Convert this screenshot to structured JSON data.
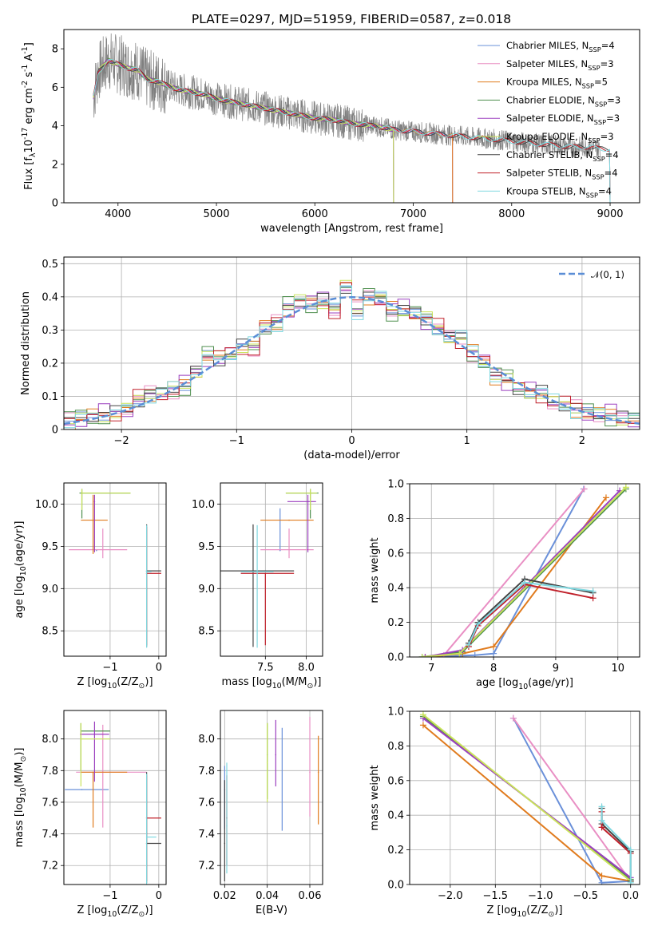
{
  "figure": {
    "title": "PLATE=0297, MJD=51959, FIBERID=0587, z=0.018"
  },
  "models": [
    {
      "label": "Chabrier MILES, N$_{SSP}$=4",
      "imf": "Chabrier",
      "lib": "MILES",
      "nssp": "4",
      "color": "#6a90d9"
    },
    {
      "label": "Salpeter MILES, N$_{SSP}$=3",
      "imf": "Salpeter",
      "lib": "MILES",
      "nssp": "3",
      "color": "#e98fc4"
    },
    {
      "label": "Kroupa MILES, N$_{SSP}$=5",
      "imf": "Kroupa",
      "lib": "MILES",
      "nssp": "5",
      "color": "#e07b1e"
    },
    {
      "label": "Chabrier ELODIE, N$_{SSP}$=3",
      "imf": "Chabrier",
      "lib": "ELODIE",
      "nssp": "3",
      "color": "#4f8f4f"
    },
    {
      "label": "Salpeter ELODIE, N$_{SSP}$=3",
      "imf": "Salpeter",
      "lib": "ELODIE",
      "nssp": "3",
      "color": "#9b3fbf"
    },
    {
      "label": "Kroupa ELODIE, N$_{SSP}$=3",
      "imf": "Kroupa",
      "lib": "ELODIE",
      "nssp": "3",
      "color": "#c9e35a"
    },
    {
      "label": "Chabrier STELIB, N$_{SSP}$=4",
      "imf": "Chabrier",
      "lib": "STELIB",
      "nssp": "4",
      "color": "#444444"
    },
    {
      "label": "Salpeter STELIB, N$_{SSP}$=4",
      "imf": "Salpeter",
      "lib": "STELIB",
      "nssp": "4",
      "color": "#c0202a"
    },
    {
      "label": "Kroupa STELIB, N$_{SSP}$=4",
      "imf": "Kroupa",
      "lib": "STELIB",
      "nssp": "4",
      "color": "#7fd8e0"
    }
  ],
  "chart_data": [
    {
      "id": "spectrum",
      "type": "line",
      "title": "PLATE=0297, MJD=51959, FIBERID=0587, z=0.018",
      "xlabel": "wavelength [Angstrom, rest frame]",
      "ylabel": "Flux [f$_\\lambda$10$^{-17}$ erg cm$^{-2}$ s$^{-1}$ A$^{-1}$]",
      "xlim": [
        3450,
        9300
      ],
      "ylim": [
        0,
        9
      ],
      "xticks": [
        4000,
        5000,
        6000,
        7000,
        8000,
        9000
      ],
      "yticks": [
        0,
        2,
        4,
        6,
        8
      ],
      "grid": false,
      "legend": "top-right",
      "data_series": {
        "name": "data",
        "color": "#808080",
        "x": [
          3750,
          3800,
          3900,
          4000,
          4100,
          4200,
          4300,
          4400,
          4500,
          4600,
          4700,
          4800,
          4900,
          5000,
          5100,
          5200,
          5300,
          5400,
          5500,
          5600,
          5700,
          5800,
          5900,
          6000,
          6200,
          6400,
          6600,
          6800,
          7000,
          7200,
          7400,
          7600,
          7800,
          8000,
          8200,
          8400,
          8600,
          8800,
          8900
        ],
        "y": [
          5.5,
          6.8,
          7.4,
          7.2,
          7.0,
          6.9,
          6.4,
          6.3,
          6.1,
          5.9,
          5.8,
          5.7,
          5.6,
          5.4,
          5.3,
          5.2,
          5.1,
          5.0,
          4.9,
          4.8,
          4.7,
          4.6,
          4.5,
          4.4,
          4.3,
          4.1,
          4.0,
          3.8,
          3.7,
          3.6,
          3.5,
          3.4,
          3.3,
          3.2,
          3.1,
          3.0,
          2.9,
          2.9,
          2.8
        ]
      },
      "model_end_x": [
        7400,
        7400,
        7400,
        6800,
        6800,
        6800,
        9000,
        9000,
        9000
      ]
    },
    {
      "id": "residual-hist",
      "type": "line",
      "xlabel": "(data-model)/error",
      "ylabel": "Normed distribution",
      "xlim": [
        -2.5,
        2.5
      ],
      "ylim": [
        0,
        0.52
      ],
      "xticks": [
        -2,
        -1,
        0,
        1,
        2
      ],
      "yticks": [
        0,
        0.1,
        0.2,
        0.3,
        0.4,
        0.5
      ],
      "grid": true,
      "legend": "top-right",
      "reference": {
        "label": "$\\mathcal{N}(0,1)$",
        "color": "#5b8ed6"
      },
      "bins": [
        -2.5,
        -2.4,
        -2.3,
        -2.2,
        -2.1,
        -2.0,
        -1.9,
        -1.8,
        -1.7,
        -1.6,
        -1.5,
        -1.4,
        -1.3,
        -1.2,
        -1.1,
        -1.0,
        -0.9,
        -0.8,
        -0.7,
        -0.6,
        -0.5,
        -0.4,
        -0.3,
        -0.2,
        -0.1,
        0.0,
        0.1,
        0.2,
        0.3,
        0.4,
        0.5,
        0.6,
        0.7,
        0.8,
        0.9,
        1.0,
        1.1,
        1.2,
        1.3,
        1.4,
        1.5,
        1.6,
        1.7,
        1.8,
        1.9,
        2.0,
        2.1,
        2.2,
        2.3,
        2.4,
        2.5
      ],
      "hist_base": [
        0.025,
        0.035,
        0.04,
        0.045,
        0.05,
        0.06,
        0.09,
        0.105,
        0.11,
        0.12,
        0.135,
        0.175,
        0.22,
        0.215,
        0.23,
        0.25,
        0.25,
        0.31,
        0.32,
        0.365,
        0.385,
        0.38,
        0.39,
        0.36,
        0.43,
        0.36,
        0.4,
        0.395,
        0.36,
        0.365,
        0.35,
        0.33,
        0.305,
        0.28,
        0.275,
        0.23,
        0.205,
        0.16,
        0.15,
        0.125,
        0.115,
        0.11,
        0.085,
        0.075,
        0.06,
        0.05,
        0.045,
        0.045,
        0.035,
        0.03
      ]
    },
    {
      "id": "age-vs-Z",
      "type": "scatter",
      "xlabel": "Z [log$_{10}$(Z/Z$_\\odot$)]",
      "ylabel": "age  [log$_{10}$(age/yr)]",
      "xlim": [
        -1.95,
        0.15
      ],
      "ylim": [
        8.2,
        10.25
      ],
      "xticks": [
        -1,
        0
      ],
      "yticks": [
        8.5,
        9.0,
        9.5,
        10.0
      ],
      "grid": true,
      "points": [
        {
          "m": 0,
          "x": -1.28,
          "y": 9.45,
          "xerr": [
            0.0,
            0.0
          ],
          "yerr": [
            0.0,
            0.0
          ]
        },
        {
          "m": 1,
          "x": -1.15,
          "y": 9.46,
          "xerr": [
            0.7,
            0.5
          ],
          "yerr": [
            0.1,
            0.25
          ]
        },
        {
          "m": 2,
          "x": -1.35,
          "y": 9.81,
          "xerr": [
            0.25,
            0.3
          ],
          "yerr": [
            0.4,
            0.3
          ]
        },
        {
          "m": 3,
          "x": -1.58,
          "y": 10.13,
          "xerr": [
            0.05,
            1.0
          ],
          "yerr": [
            0.3,
            0.05
          ]
        },
        {
          "m": 4,
          "x": -1.32,
          "y": 10.03,
          "xerr": [
            0.0,
            0.0
          ],
          "yerr": [
            0.6,
            0.08
          ]
        },
        {
          "m": 5,
          "x": -1.58,
          "y": 10.13,
          "xerr": [
            0.0,
            1.0
          ],
          "yerr": [
            0.2,
            0.05
          ]
        },
        {
          "m": 6,
          "x": -0.25,
          "y": 9.21,
          "xerr": [
            0.0,
            0.3
          ],
          "yerr": [
            0.9,
            0.55
          ]
        },
        {
          "m": 7,
          "x": -0.25,
          "y": 9.18,
          "xerr": [
            0.0,
            0.3
          ],
          "yerr": [
            0.85,
            0.55
          ]
        },
        {
          "m": 8,
          "x": -0.25,
          "y": 9.2,
          "xerr": [
            0.0,
            0.1
          ],
          "yerr": [
            0.9,
            0.55
          ]
        }
      ]
    },
    {
      "id": "age-vs-mass",
      "type": "scatter",
      "xlabel": "mass [log$_{10}$(M/M$_\\odot$)]",
      "xlim": [
        6.95,
        8.2
      ],
      "ylim": [
        8.2,
        10.25
      ],
      "xticks": [
        7.5,
        8.0
      ],
      "yticks": [
        8.5,
        9.0,
        9.5,
        10.0
      ],
      "grid": true,
      "points": [
        {
          "m": 0,
          "x": 7.68,
          "y": 9.45,
          "xerr": [
            0.0,
            0.0
          ],
          "yerr": [
            0.0,
            0.5
          ]
        },
        {
          "m": 1,
          "x": 7.79,
          "y": 9.46,
          "xerr": [
            0.35,
            0.3
          ],
          "yerr": [
            0.1,
            0.25
          ]
        },
        {
          "m": 2,
          "x": 7.79,
          "y": 9.81,
          "xerr": [
            0.35,
            0.3
          ],
          "yerr": [
            0.0,
            0.0
          ]
        },
        {
          "m": 3,
          "x": 8.05,
          "y": 10.13,
          "xerr": [
            0.3,
            0.1
          ],
          "yerr": [
            0.3,
            0.05
          ]
        },
        {
          "m": 4,
          "x": 8.02,
          "y": 10.03,
          "xerr": [
            0.25,
            0.1
          ],
          "yerr": [
            0.6,
            0.08
          ]
        },
        {
          "m": 5,
          "x": 8.05,
          "y": 10.13,
          "xerr": [
            0.3,
            0.08
          ],
          "yerr": [
            0.2,
            0.05
          ]
        },
        {
          "m": 6,
          "x": 7.35,
          "y": 9.21,
          "xerr": [
            0.4,
            0.5
          ],
          "yerr": [
            0.9,
            0.55
          ]
        },
        {
          "m": 7,
          "x": 7.5,
          "y": 9.18,
          "xerr": [
            0.3,
            0.35
          ],
          "yerr": [
            0.85,
            0.0
          ]
        },
        {
          "m": 8,
          "x": 7.4,
          "y": 9.2,
          "xerr": [
            0.2,
            0.2
          ],
          "yerr": [
            0.9,
            0.55
          ]
        }
      ]
    },
    {
      "id": "weight-vs-age",
      "type": "line",
      "xlabel": "age  [log$_{10}$(age/yr)]",
      "ylabel": "mass weight",
      "xlim": [
        6.65,
        10.35
      ],
      "ylim": [
        0,
        1.0
      ],
      "xticks": [
        7,
        8,
        9,
        10
      ],
      "yticks": [
        0.0,
        0.2,
        0.4,
        0.6,
        0.8,
        1.0
      ],
      "grid": true,
      "series": [
        {
          "m": 0,
          "x": [
            6.85,
            7.7,
            8.0,
            9.45
          ],
          "y": [
            0.0,
            0.01,
            0.02,
            0.97
          ]
        },
        {
          "m": 1,
          "x": [
            7.2,
            9.46
          ],
          "y": [
            0.01,
            0.97
          ]
        },
        {
          "m": 2,
          "x": [
            6.9,
            7.5,
            8.0,
            9.81
          ],
          "y": [
            0.0,
            0.02,
            0.06,
            0.92
          ]
        },
        {
          "m": 3,
          "x": [
            6.85,
            7.5,
            10.13
          ],
          "y": [
            0.0,
            0.03,
            0.97
          ]
        },
        {
          "m": 4,
          "x": [
            6.9,
            7.5,
            10.03
          ],
          "y": [
            0.0,
            0.04,
            0.96
          ]
        },
        {
          "m": 5,
          "x": [
            6.85,
            7.45,
            10.13
          ],
          "y": [
            0.0,
            0.02,
            0.98
          ]
        },
        {
          "m": 6,
          "x": [
            7.6,
            7.75,
            8.5,
            9.6
          ],
          "y": [
            0.08,
            0.2,
            0.45,
            0.37
          ]
        },
        {
          "m": 7,
          "x": [
            7.6,
            7.75,
            8.5,
            9.6
          ],
          "y": [
            0.06,
            0.18,
            0.42,
            0.34
          ]
        },
        {
          "m": 8,
          "x": [
            7.6,
            7.75,
            8.5,
            9.6
          ],
          "y": [
            0.07,
            0.19,
            0.43,
            0.38
          ]
        }
      ]
    },
    {
      "id": "mass-vs-Z",
      "type": "scatter",
      "xlabel": "Z [log$_{10}$(Z/Z$_\\odot$)]",
      "ylabel": "mass [log$_{10}$(M/M$_\\odot$)]",
      "xlim": [
        -1.95,
        0.15
      ],
      "ylim": [
        7.08,
        8.18
      ],
      "xticks": [
        -1,
        0
      ],
      "yticks": [
        7.2,
        7.4,
        7.6,
        7.8,
        8.0
      ],
      "grid": true,
      "points": [
        {
          "m": 0,
          "x": -1.58,
          "y": 7.68,
          "xerr": [
            0.35,
            0.55
          ],
          "yerr": [
            0.0,
            0.0
          ]
        },
        {
          "m": 1,
          "x": -1.15,
          "y": 7.79,
          "xerr": [
            0.55,
            0.9
          ],
          "yerr": [
            0.35,
            0.3
          ]
        },
        {
          "m": 2,
          "x": -1.35,
          "y": 7.79,
          "xerr": [
            0.25,
            0.7
          ],
          "yerr": [
            0.35,
            0.0
          ]
        },
        {
          "m": 3,
          "x": -1.6,
          "y": 8.05,
          "xerr": [
            0.0,
            0.6
          ],
          "yerr": [
            0.25,
            0.05
          ]
        },
        {
          "m": 4,
          "x": -1.32,
          "y": 8.03,
          "xerr": [
            0.3,
            0.3
          ],
          "yerr": [
            0.3,
            0.08
          ]
        },
        {
          "m": 5,
          "x": -1.6,
          "y": 8.0,
          "xerr": [
            0.0,
            0.6
          ],
          "yerr": [
            0.3,
            0.1
          ]
        },
        {
          "m": 6,
          "x": -0.25,
          "y": 7.34,
          "xerr": [
            0.0,
            0.3
          ],
          "yerr": [
            0.25,
            0.45
          ]
        },
        {
          "m": 7,
          "x": -0.25,
          "y": 7.5,
          "xerr": [
            0.0,
            0.3
          ],
          "yerr": [
            0.4,
            0.27
          ]
        },
        {
          "m": 8,
          "x": -0.25,
          "y": 7.38,
          "xerr": [
            0.0,
            0.2
          ],
          "yerr": [
            0.3,
            0.4
          ]
        }
      ]
    },
    {
      "id": "mass-vs-ebv",
      "type": "scatter",
      "xlabel": "E(B-V)",
      "xlim": [
        0.018,
        0.066
      ],
      "ylim": [
        7.08,
        8.18
      ],
      "xticks": [
        0.02,
        0.04,
        0.06
      ],
      "yticks": [
        7.2,
        7.4,
        7.6,
        7.8,
        8.0
      ],
      "grid": true,
      "points": [
        {
          "m": 0,
          "x": 0.02,
          "y": 7.68,
          "xerr": [
            0,
            0
          ],
          "yerr": [
            0.25,
            0.15
          ]
        },
        {
          "m": 1,
          "x": 0.06,
          "y": 7.79,
          "xerr": [
            0,
            0
          ],
          "yerr": [
            0.28,
            0.35
          ]
        },
        {
          "m": 2,
          "x": 0.064,
          "y": 7.79,
          "xerr": [
            0,
            0
          ],
          "yerr": [
            0.33,
            0.23
          ]
        },
        {
          "m": 3,
          "x": 0.04,
          "y": 7.9,
          "xerr": [
            0,
            0
          ],
          "yerr": [
            0.28,
            0.2
          ]
        },
        {
          "m": 4,
          "x": 0.044,
          "y": 7.9,
          "xerr": [
            0,
            0
          ],
          "yerr": [
            0.2,
            0.22
          ]
        },
        {
          "m": 5,
          "x": 0.04,
          "y": 7.85,
          "xerr": [
            0,
            0
          ],
          "yerr": [
            0.25,
            0.25
          ]
        },
        {
          "m": 6,
          "x": 0.02,
          "y": 7.34,
          "xerr": [
            0,
            0
          ],
          "yerr": [
            0.24,
            0.4
          ]
        },
        {
          "m": 7,
          "x": 0.021,
          "y": 7.5,
          "xerr": [
            0,
            0
          ],
          "yerr": [
            0.3,
            0.27
          ]
        },
        {
          "m": 8,
          "x": 0.021,
          "y": 7.45,
          "xerr": [
            0,
            0
          ],
          "yerr": [
            0.3,
            0.4
          ]
        }
      ],
      "extra_vline": {
        "m": 4,
        "x": 0.047,
        "y": 7.77,
        "yerr": [
          0.35,
          0.3
        ],
        "color": "#6a90d9"
      }
    },
    {
      "id": "weight-vs-Z",
      "type": "line",
      "xlabel": "Z [log$_{10}$(Z/Z$_\\odot$)]",
      "ylabel": "mass weight",
      "xlim": [
        -2.45,
        0.1
      ],
      "ylim": [
        0,
        1.0
      ],
      "xticks": [
        -2.0,
        -1.5,
        -1.0,
        -0.5,
        0.0
      ],
      "yticks": [
        0.0,
        0.2,
        0.4,
        0.6,
        0.8,
        1.0
      ],
      "grid": true,
      "series": [
        {
          "m": 0,
          "x": [
            -1.3,
            -0.32,
            0.0,
            0.0
          ],
          "y": [
            0.96,
            0.01,
            0.02,
            0.02
          ]
        },
        {
          "m": 1,
          "x": [
            -1.3,
            0.0
          ],
          "y": [
            0.96,
            0.02
          ]
        },
        {
          "m": 2,
          "x": [
            -2.3,
            -0.32,
            0.0
          ],
          "y": [
            0.92,
            0.05,
            0.02
          ]
        },
        {
          "m": 3,
          "x": [
            -2.3,
            0.0
          ],
          "y": [
            0.97,
            0.03
          ]
        },
        {
          "m": 4,
          "x": [
            -2.3,
            0.0
          ],
          "y": [
            0.96,
            0.04
          ]
        },
        {
          "m": 5,
          "x": [
            -2.3,
            0.0
          ],
          "y": [
            0.98,
            0.02
          ]
        },
        {
          "m": 6,
          "x": [
            -0.32,
            -0.32,
            0.0,
            0.0
          ],
          "y": [
            0.44,
            0.35,
            0.19,
            0.02
          ]
        },
        {
          "m": 7,
          "x": [
            -0.32,
            -0.32,
            0.0
          ],
          "y": [
            0.42,
            0.33,
            0.18
          ]
        },
        {
          "m": 8,
          "x": [
            -0.32,
            -0.32,
            0.0,
            0.0
          ],
          "y": [
            0.45,
            0.37,
            0.2,
            0.01
          ]
        }
      ]
    }
  ]
}
